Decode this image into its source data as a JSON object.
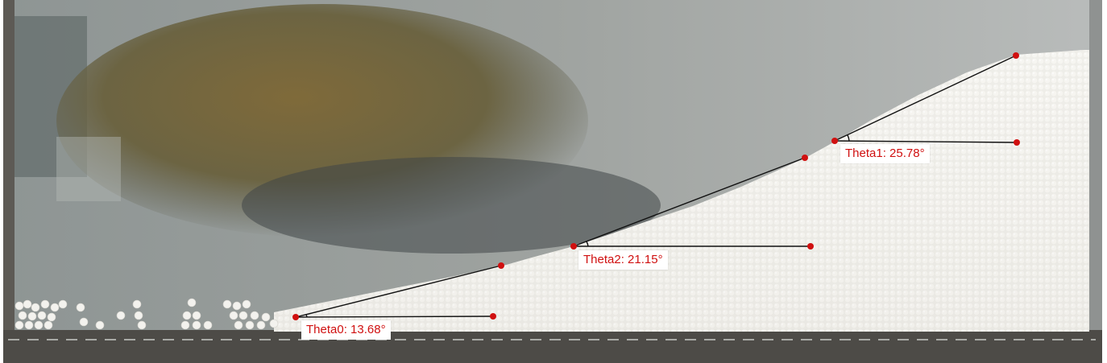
{
  "measurements": [
    {
      "label": "Theta0: 13.68°",
      "angle_deg": 13.68
    },
    {
      "label": "Theta2: 21.15°",
      "angle_deg": 21.15
    },
    {
      "label": "Theta1: 25.78°",
      "angle_deg": 25.78
    }
  ],
  "colors": {
    "marker": "#d01010",
    "line": "#111111",
    "label_text": "#d01010",
    "label_bg": "#ffffff"
  }
}
